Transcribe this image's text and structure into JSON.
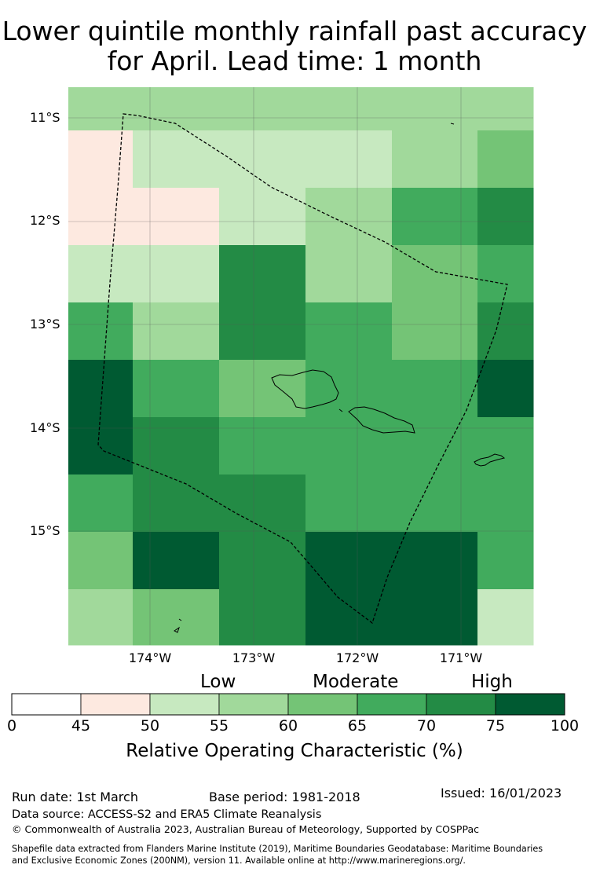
{
  "title": {
    "line1": "Lower quintile monthly rainfall past accuracy",
    "line2": "for April. Lead time: 1 month"
  },
  "map": {
    "lat_labels": [
      "11°S",
      "12°S",
      "13°S",
      "14°S",
      "15°S"
    ],
    "lon_labels": [
      "174°W",
      "173°W",
      "172°W",
      "171°W"
    ],
    "grid_values_percent": [
      [
        57,
        57,
        57,
        57,
        57,
        57
      ],
      [
        47,
        52,
        52,
        52,
        57,
        62
      ],
      [
        47,
        47,
        52,
        57,
        67,
        72
      ],
      [
        52,
        52,
        72,
        57,
        62,
        67
      ],
      [
        67,
        57,
        72,
        67,
        62,
        72
      ],
      [
        80,
        67,
        62,
        67,
        67,
        80
      ],
      [
        80,
        72,
        67,
        67,
        67,
        67
      ],
      [
        67,
        72,
        72,
        67,
        67,
        67
      ],
      [
        62,
        80,
        72,
        80,
        80,
        67
      ],
      [
        57,
        62,
        72,
        80,
        80,
        52
      ]
    ],
    "colors": {
      "45-50": "#fde9e0",
      "50-55": "#c7e9c0",
      "55-60": "#a1d99b",
      "60-65": "#74c476",
      "65-70": "#41ab5d",
      "70-75": "#238b45",
      "75-100": "#005a32"
    }
  },
  "colorbar": {
    "categories": [
      "Low",
      "Moderate",
      "High"
    ],
    "ticks": [
      "0",
      "45",
      "50",
      "55",
      "60",
      "65",
      "70",
      "75",
      "100"
    ],
    "colors": [
      "#ffffff",
      "#fde9e0",
      "#c7e9c0",
      "#a1d99b",
      "#74c476",
      "#41ab5d",
      "#238b45",
      "#005a32"
    ],
    "label": "Relative Operating Characteristic (%)"
  },
  "footer": {
    "run_date": "Run date: 1st March",
    "base_period": "Base period: 1981-2018",
    "issued": "Issued: 16/01/2023",
    "data_source": "Data source: ACCESS-S2 and ERA5 Climate Reanalysis",
    "copyright": "© Commonwealth of Australia 2023, Australian Bureau of Meteorology, Supported by COSPPac",
    "shapefile_line1": "Shapefile data extracted from Flanders Marine Institute (2019), Maritime Boundaries Geodatabase: Maritime Boundaries",
    "shapefile_line2": "and Exclusive Economic Zones (200NM), version 11. Available online at http://www.marineregions.org/."
  }
}
